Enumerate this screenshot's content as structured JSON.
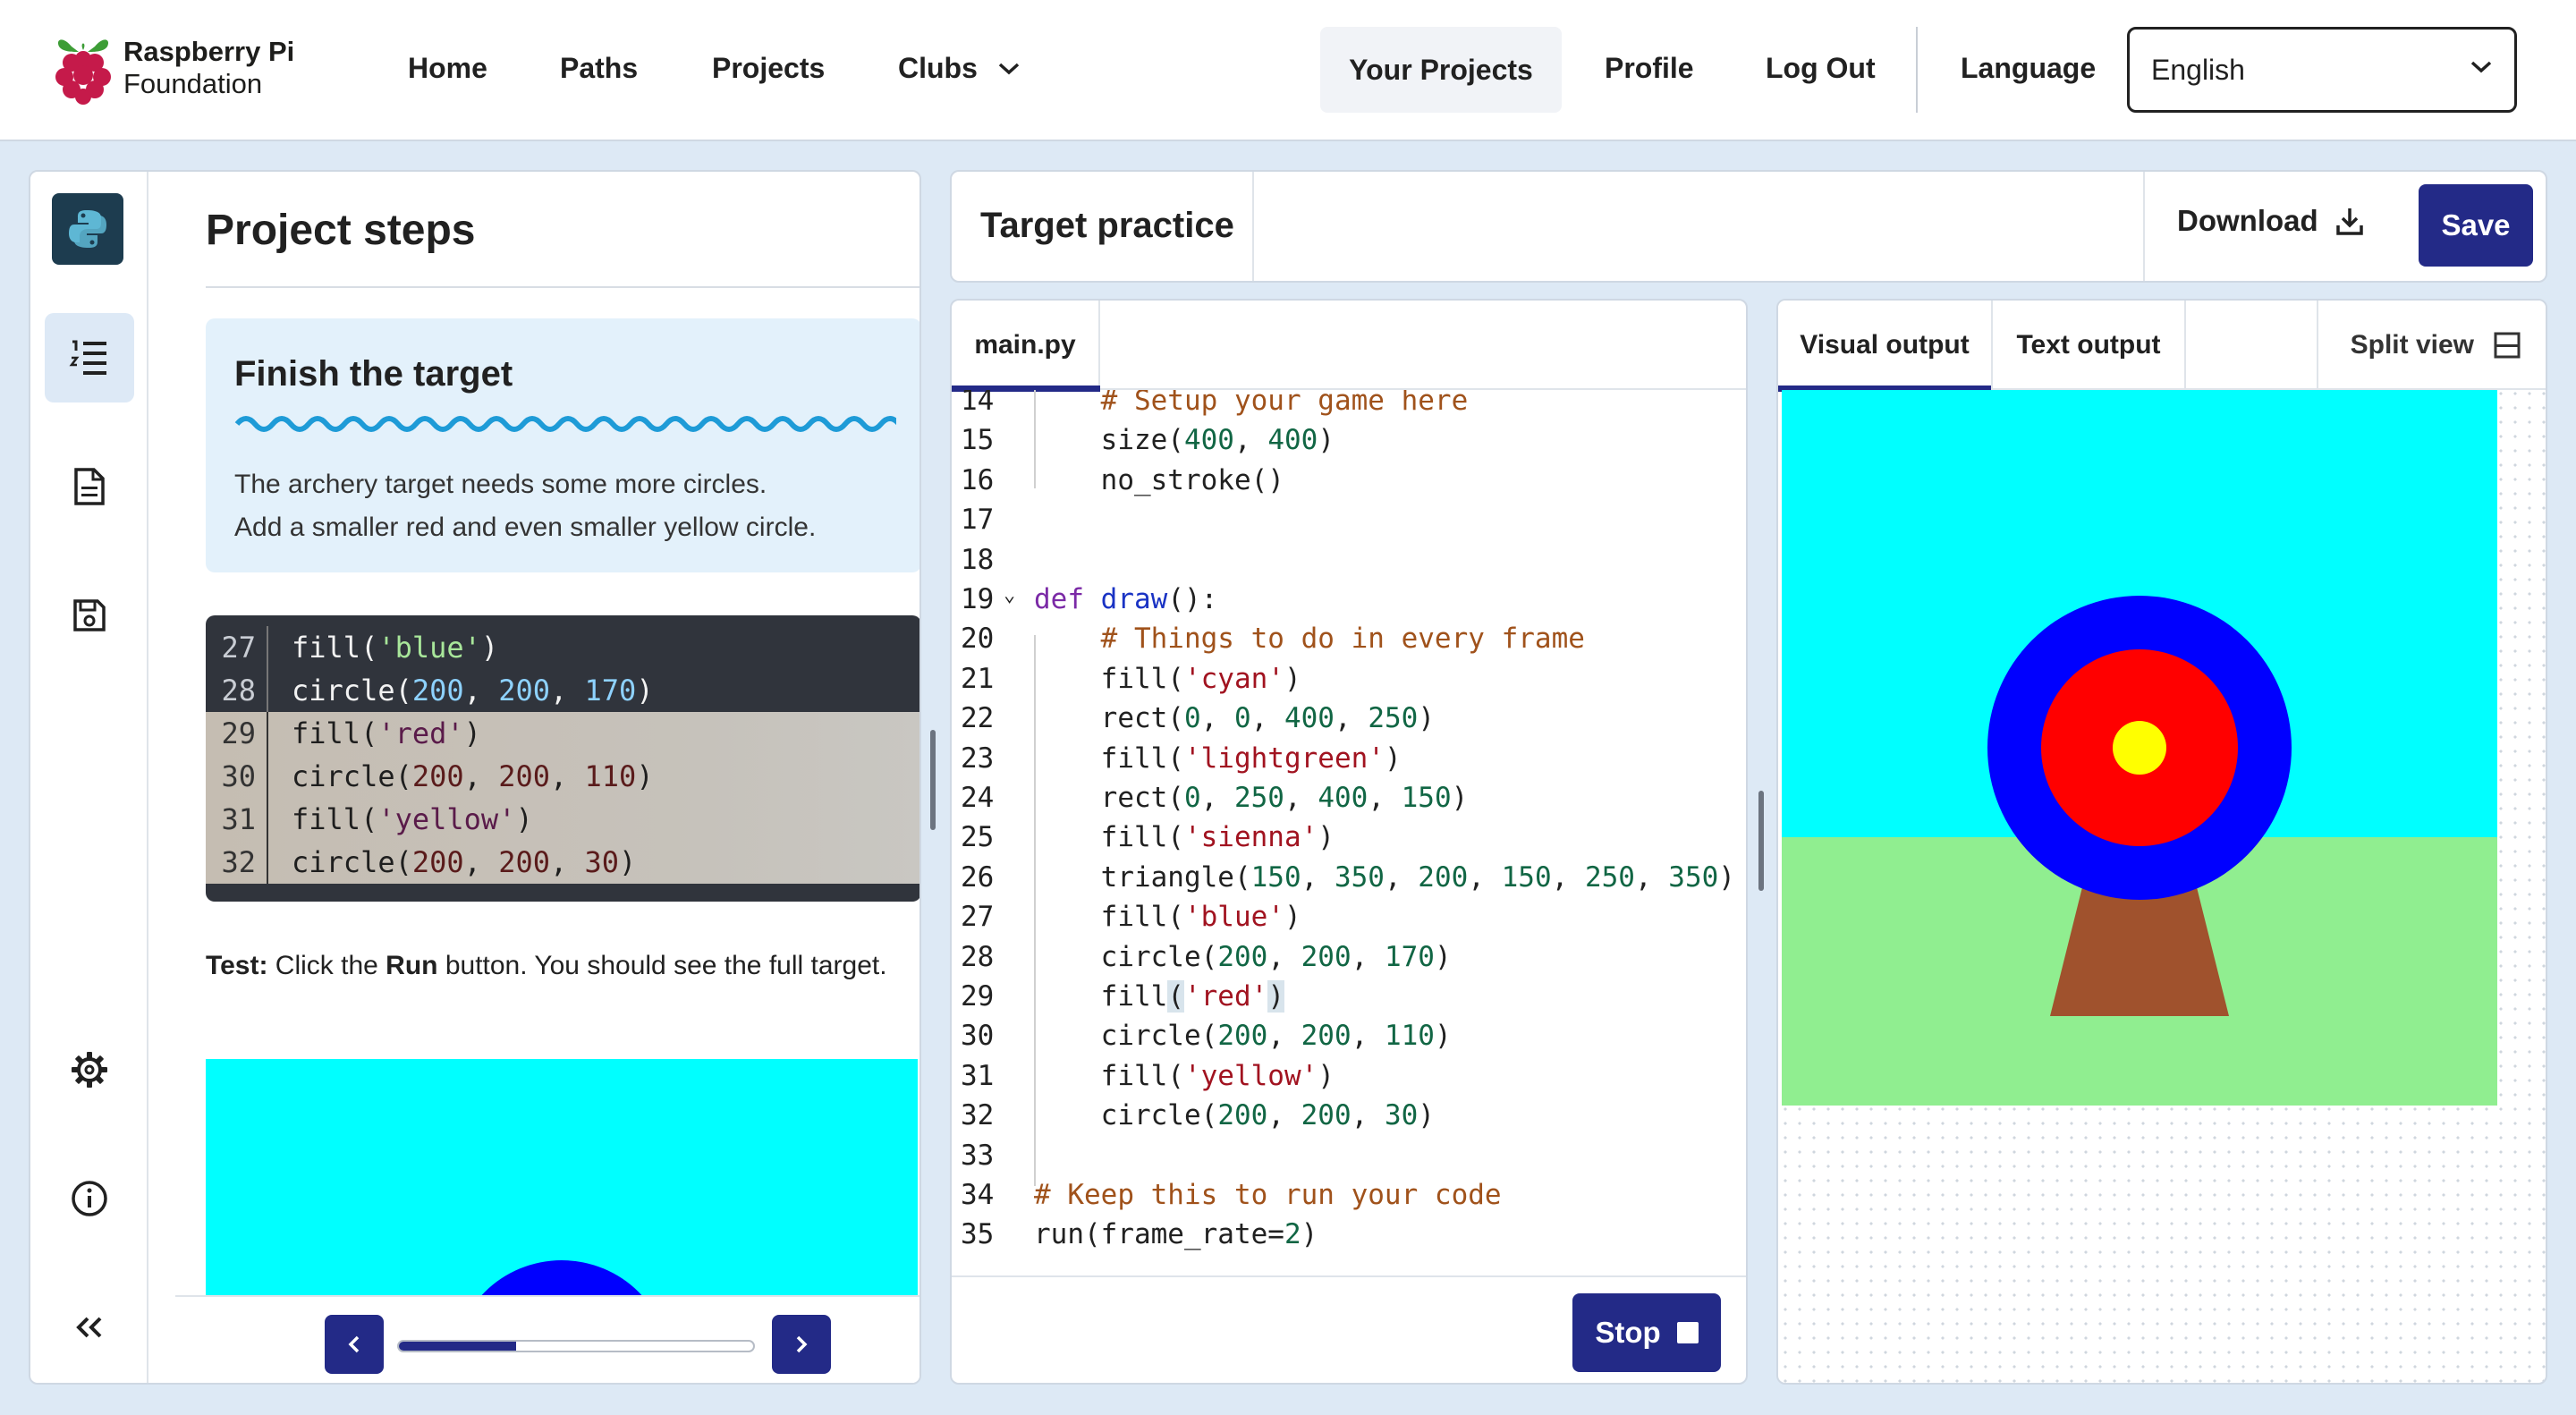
{
  "header": {
    "brand_line1": "Raspberry Pi",
    "brand_line2": "Foundation",
    "nav": [
      "Home",
      "Paths",
      "Projects",
      "Clubs"
    ],
    "your_projects": "Your Projects",
    "profile": "Profile",
    "logout": "Log Out",
    "language_label": "Language",
    "language_value": "English"
  },
  "sidebar": {
    "title": "Project steps",
    "step_title": "Finish the target",
    "step_desc_1": "The archery target needs some more circles.",
    "step_desc_2": "Add a smaller red and even smaller yellow circle.",
    "code_lines": [
      {
        "n": "27",
        "pre": "fill(",
        "str": "'blue'",
        "post": ")",
        "hl": false
      },
      {
        "n": "28",
        "pre": "circle(",
        "nums": "200, 200, 170",
        "post": ")",
        "hl": false
      },
      {
        "n": "29",
        "pre": "fill(",
        "str": "'red'",
        "post": ")",
        "hl": true
      },
      {
        "n": "30",
        "pre": "circle(",
        "nums": "200, 200, 110",
        "post": ")",
        "hl": true
      },
      {
        "n": "31",
        "pre": "fill(",
        "str": "'yellow'",
        "post": ")",
        "hl": true
      },
      {
        "n": "32",
        "pre": "circle(",
        "nums": "200, 200, 30",
        "post": ")",
        "hl": true
      }
    ],
    "test_label": "Test:",
    "test_text_1": " Click the ",
    "test_run": "Run",
    "test_text_2": " button. You should see the full target.",
    "progress": 0.33
  },
  "project": {
    "name": "Target practice",
    "download": "Download",
    "save": "Save"
  },
  "editor": {
    "tab": "main.py",
    "stop": "Stop",
    "lines": [
      {
        "n": "14",
        "indent": "    ",
        "tokens": [
          [
            "cm",
            "# Setup your game here"
          ]
        ]
      },
      {
        "n": "15",
        "indent": "    ",
        "tokens": [
          [
            "",
            "size("
          ],
          [
            "num",
            "400"
          ],
          [
            "",
            ", "
          ],
          [
            "num",
            "400"
          ],
          [
            "",
            ")"
          ]
        ]
      },
      {
        "n": "16",
        "indent": "    ",
        "tokens": [
          [
            "",
            "no_stroke()"
          ]
        ]
      },
      {
        "n": "17",
        "indent": "",
        "tokens": []
      },
      {
        "n": "18",
        "indent": "",
        "tokens": []
      },
      {
        "n": "19",
        "indent": "",
        "tokens": [
          [
            "kw",
            "def"
          ],
          [
            "",
            " "
          ],
          [
            "fn",
            "draw"
          ],
          [
            "",
            "():"
          ]
        ]
      },
      {
        "n": "20",
        "indent": "    ",
        "tokens": [
          [
            "cm",
            "# Things to do in every frame"
          ]
        ]
      },
      {
        "n": "21",
        "indent": "    ",
        "tokens": [
          [
            "",
            "fill("
          ],
          [
            "str",
            "'cyan'"
          ],
          [
            "",
            ")"
          ]
        ]
      },
      {
        "n": "22",
        "indent": "    ",
        "tokens": [
          [
            "",
            "rect("
          ],
          [
            "num",
            "0"
          ],
          [
            "",
            ", "
          ],
          [
            "num",
            "0"
          ],
          [
            "",
            ", "
          ],
          [
            "num",
            "400"
          ],
          [
            "",
            ", "
          ],
          [
            "num",
            "250"
          ],
          [
            "",
            ")"
          ]
        ]
      },
      {
        "n": "23",
        "indent": "    ",
        "tokens": [
          [
            "",
            "fill("
          ],
          [
            "str",
            "'lightgreen'"
          ],
          [
            "",
            ")"
          ]
        ]
      },
      {
        "n": "24",
        "indent": "    ",
        "tokens": [
          [
            "",
            "rect("
          ],
          [
            "num",
            "0"
          ],
          [
            "",
            ", "
          ],
          [
            "num",
            "250"
          ],
          [
            "",
            ", "
          ],
          [
            "num",
            "400"
          ],
          [
            "",
            ", "
          ],
          [
            "num",
            "150"
          ],
          [
            "",
            ")"
          ]
        ]
      },
      {
        "n": "25",
        "indent": "    ",
        "tokens": [
          [
            "",
            "fill("
          ],
          [
            "str",
            "'sienna'"
          ],
          [
            "",
            ")"
          ]
        ]
      },
      {
        "n": "26",
        "indent": "    ",
        "tokens": [
          [
            "",
            "triangle("
          ],
          [
            "num",
            "150"
          ],
          [
            "",
            ", "
          ],
          [
            "num",
            "350"
          ],
          [
            "",
            ", "
          ],
          [
            "num",
            "200"
          ],
          [
            "",
            ", "
          ],
          [
            "num",
            "150"
          ],
          [
            "",
            ", "
          ],
          [
            "num",
            "250"
          ],
          [
            "",
            ", "
          ],
          [
            "num",
            "350"
          ],
          [
            "",
            ")"
          ]
        ]
      },
      {
        "n": "27",
        "indent": "    ",
        "tokens": [
          [
            "",
            "fill("
          ],
          [
            "str",
            "'blue'"
          ],
          [
            "",
            ")"
          ]
        ]
      },
      {
        "n": "28",
        "indent": "    ",
        "tokens": [
          [
            "",
            "circle("
          ],
          [
            "num",
            "200"
          ],
          [
            "",
            ", "
          ],
          [
            "num",
            "200"
          ],
          [
            "",
            ", "
          ],
          [
            "num",
            "170"
          ],
          [
            "",
            ")"
          ]
        ]
      },
      {
        "n": "29",
        "indent": "    ",
        "tokens": [
          [
            "",
            "fill"
          ],
          [
            "br",
            "("
          ],
          [
            "str",
            "'red'"
          ],
          [
            "br",
            ")"
          ]
        ]
      },
      {
        "n": "30",
        "indent": "    ",
        "tokens": [
          [
            "",
            "circle("
          ],
          [
            "num",
            "200"
          ],
          [
            "",
            ", "
          ],
          [
            "num",
            "200"
          ],
          [
            "",
            ", "
          ],
          [
            "num",
            "110"
          ],
          [
            "",
            ")"
          ]
        ]
      },
      {
        "n": "31",
        "indent": "    ",
        "tokens": [
          [
            "",
            "fill("
          ],
          [
            "str",
            "'yellow'"
          ],
          [
            "",
            ")"
          ]
        ]
      },
      {
        "n": "32",
        "indent": "    ",
        "tokens": [
          [
            "",
            "circle("
          ],
          [
            "num",
            "200"
          ],
          [
            "",
            ", "
          ],
          [
            "num",
            "200"
          ],
          [
            "",
            ", "
          ],
          [
            "num",
            "30"
          ],
          [
            "",
            ")"
          ]
        ]
      },
      {
        "n": "33",
        "indent": "",
        "tokens": []
      },
      {
        "n": "34",
        "indent": "",
        "tokens": [
          [
            "cm",
            "# Keep this to run your code"
          ]
        ]
      },
      {
        "n": "35",
        "indent": "",
        "tokens": [
          [
            "",
            "run(frame_rate="
          ],
          [
            "num",
            "2"
          ],
          [
            "",
            ")"
          ]
        ]
      }
    ]
  },
  "output": {
    "tab_visual": "Visual output",
    "tab_text": "Text output",
    "split_view": "Split view"
  },
  "colors": {
    "accent": "#232a87",
    "sky": "#00ffff",
    "grass": "#90ee90",
    "stand": "#a0522d",
    "ring_blue": "#0000ff",
    "ring_red": "#ff0000",
    "ring_yellow": "#ffff00"
  },
  "icons": [
    "python-icon",
    "steps-icon",
    "file-icon",
    "save-icon",
    "settings-icon",
    "info-icon",
    "collapse-icon",
    "download-icon",
    "split-view-icon",
    "chevron-down-icon",
    "prev-icon",
    "next-icon",
    "stop-icon"
  ]
}
